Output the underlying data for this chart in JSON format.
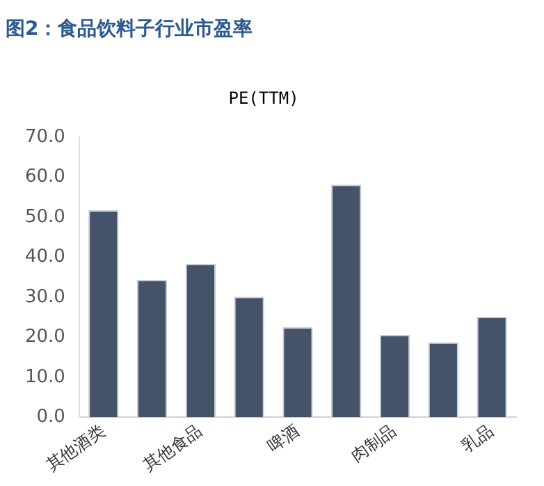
{
  "chart_data": {
    "type": "bar",
    "title": "图2：食品饮料子行业市盈率",
    "subtitle": "PE(TTM)",
    "categories": [
      "其他酒类",
      null,
      "其他食品",
      null,
      "啤酒",
      null,
      "肉制品",
      null,
      "乳品"
    ],
    "values": [
      51.7,
      34.3,
      38.3,
      30.1,
      22.5,
      58.1,
      20.6,
      18.7,
      25.1
    ],
    "color": "#44526a",
    "ylim": [
      0,
      70
    ],
    "yticks": [
      {
        "value": 0,
        "label": "0.0"
      },
      {
        "value": 10,
        "label": "10.0"
      },
      {
        "value": 20,
        "label": "20.0"
      },
      {
        "value": 30,
        "label": "30.0"
      },
      {
        "value": 40,
        "label": "40.0"
      },
      {
        "value": 50,
        "label": "50.0"
      },
      {
        "value": 60,
        "label": "60.0"
      },
      {
        "value": 70,
        "label": "70.0"
      }
    ],
    "grid": false,
    "legend": false
  }
}
